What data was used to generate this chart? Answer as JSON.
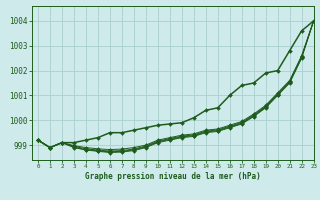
{
  "title": "Graphe pression niveau de la mer (hPa)",
  "bg_color": "#ceeaea",
  "grid_color": "#aacfcf",
  "line_color": "#1e5c1e",
  "marker_color": "#1e5c1e",
  "xlim": [
    -0.5,
    23
  ],
  "ylim": [
    998.4,
    1004.6
  ],
  "yticks": [
    999,
    1000,
    1001,
    1002,
    1003,
    1004
  ],
  "xtick_labels": [
    "0",
    "1",
    "2",
    "3",
    "4",
    "5",
    "6",
    "7",
    "8",
    "9",
    "10",
    "11",
    "12",
    "13",
    "14",
    "15",
    "16",
    "17",
    "18",
    "19",
    "20",
    "21",
    "22",
    "23"
  ],
  "upper_line": [
    999.2,
    998.9,
    999.1,
    999.1,
    999.2,
    999.3,
    999.5,
    999.5,
    999.6,
    999.7,
    999.8,
    999.85,
    999.9,
    1000.1,
    1000.4,
    1000.5,
    1001.0,
    1001.4,
    1001.5,
    1001.9,
    1002.0,
    1002.8,
    1003.6,
    1004.0
  ],
  "band_line1": [
    999.2,
    998.9,
    999.1,
    998.9,
    998.8,
    998.75,
    998.7,
    998.72,
    998.78,
    998.9,
    999.1,
    999.2,
    999.3,
    999.35,
    999.5,
    999.55,
    999.7,
    999.85,
    1000.15,
    1000.5,
    1001.0,
    1001.5,
    1002.5,
    1004.0
  ],
  "band_line2": [
    999.2,
    998.9,
    999.1,
    998.92,
    998.82,
    998.77,
    998.73,
    998.75,
    998.81,
    998.93,
    999.13,
    999.23,
    999.33,
    999.38,
    999.53,
    999.58,
    999.73,
    999.88,
    1000.18,
    1000.53,
    1001.03,
    1001.53,
    1002.53,
    1004.0
  ],
  "band_line3": [
    999.2,
    998.9,
    999.1,
    998.95,
    998.85,
    998.8,
    998.76,
    998.78,
    998.84,
    998.96,
    999.16,
    999.26,
    999.36,
    999.41,
    999.56,
    999.61,
    999.76,
    999.91,
    1000.21,
    1000.56,
    1001.06,
    1001.56,
    1002.56,
    1004.0
  ],
  "band_line4": [
    999.2,
    998.9,
    999.1,
    998.98,
    998.9,
    998.85,
    998.82,
    998.84,
    998.9,
    999.0,
    999.2,
    999.3,
    999.4,
    999.45,
    999.6,
    999.65,
    999.8,
    999.95,
    1000.25,
    1000.6,
    1001.1,
    1001.6,
    1002.6,
    1004.0
  ]
}
